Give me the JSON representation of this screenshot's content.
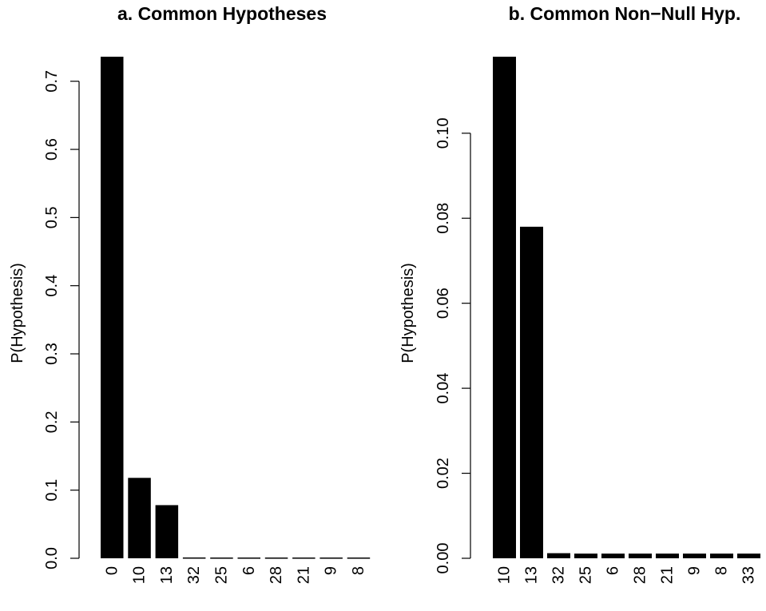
{
  "colors": {
    "bar": "#000000",
    "axis": "#000000",
    "background": "#ffffff"
  },
  "chart_data": [
    {
      "type": "bar",
      "title": "a. Common Hypotheses",
      "xlabel": "",
      "ylabel": "P(Hypothesis)",
      "categories": [
        "0",
        "10",
        "13",
        "32",
        "25",
        "6",
        "28",
        "21",
        "9",
        "8"
      ],
      "values": [
        0.736,
        0.118,
        0.078,
        0.0012,
        0.0011,
        0.0011,
        0.0011,
        0.0011,
        0.0011,
        0.0011
      ],
      "yticks": [
        0.0,
        0.1,
        0.2,
        0.3,
        0.4,
        0.5,
        0.6,
        0.7
      ],
      "ytick_labels": [
        "0.0",
        "0.1",
        "0.2",
        "0.3",
        "0.4",
        "0.5",
        "0.6",
        "0.7"
      ],
      "ylim": [
        0,
        0.736
      ],
      "grid": false,
      "legend": "none"
    },
    {
      "type": "bar",
      "title": "b. Common Non−Null Hyp.",
      "xlabel": "",
      "ylabel": "P(Hypothesis)",
      "categories": [
        "10",
        "13",
        "32",
        "25",
        "6",
        "28",
        "21",
        "9",
        "8",
        "33"
      ],
      "values": [
        0.118,
        0.078,
        0.0012,
        0.0011,
        0.0011,
        0.0011,
        0.0011,
        0.0011,
        0.0011,
        0.0011
      ],
      "yticks": [
        0.0,
        0.02,
        0.04,
        0.06,
        0.08,
        0.1
      ],
      "ytick_labels": [
        "0.00",
        "0.02",
        "0.04",
        "0.06",
        "0.08",
        "0.10"
      ],
      "ylim": [
        0,
        0.118
      ],
      "grid": false,
      "legend": "none"
    }
  ]
}
